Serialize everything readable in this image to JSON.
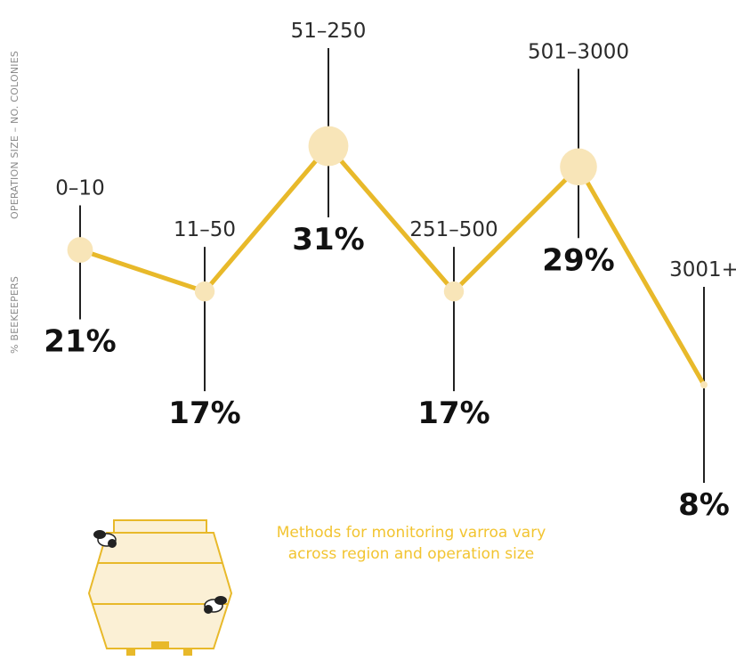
{
  "axis_labels": {
    "size_label": "OPERATION SIZE – NO. COLONIES",
    "percent_label": "% BEEKEEPERS"
  },
  "caption": {
    "line1": "Methods for monitoring varroa vary",
    "line2": "across region and operation size"
  },
  "colors": {
    "line": "#E8B92A",
    "dot": "#F8E5B8",
    "stem": "#222222",
    "caption": "#F2C431",
    "hive": "#E8B92A",
    "hive_fill": "#FBF0D5"
  },
  "chart_data": {
    "type": "line",
    "categories": [
      "0–10",
      "11–50",
      "51–250",
      "251–500",
      "501–3000",
      "3001+"
    ],
    "values": [
      21,
      17,
      31,
      17,
      29,
      8
    ],
    "value_labels": [
      "21%",
      "17%",
      "31%",
      "17%",
      "29%",
      "8%"
    ],
    "ylim": [
      0,
      35
    ],
    "grid": false,
    "legend": "none"
  }
}
